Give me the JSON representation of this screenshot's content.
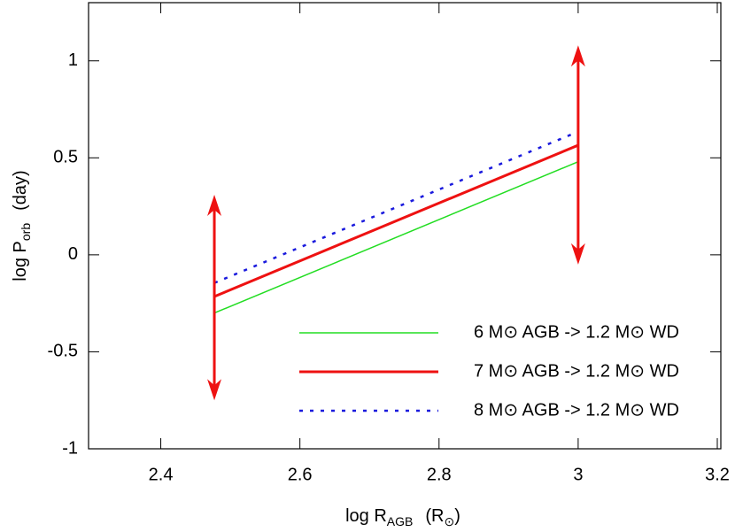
{
  "chart_data": {
    "type": "line",
    "x_label": {
      "main": "log R",
      "sub": "AGB",
      "unit": "(R",
      "sun": "⊙",
      "close": ")"
    },
    "y_label": {
      "main": "log P",
      "sub": "orb",
      "unit": "(day)"
    },
    "xlim": [
      2.3,
      3.2
    ],
    "ylim": [
      -1,
      1.3
    ],
    "xticks": [
      2.4,
      2.6,
      2.8,
      3,
      3.2
    ],
    "yticks": [
      -1,
      -0.5,
      0,
      0.5,
      1
    ],
    "series": [
      {
        "name": "6 M⊙ AGB -> 1.2 M⊙ WD",
        "color": "#22dd22",
        "style": "solid",
        "width": 1.5,
        "x": [
          2.477,
          3.0
        ],
        "values": [
          -0.3,
          0.48
        ]
      },
      {
        "name": "7 M⊙ AGB -> 1.2 M⊙ WD",
        "color": "#ee1111",
        "style": "solid",
        "width": 3,
        "x": [
          2.477,
          3.0
        ],
        "values": [
          -0.215,
          0.565
        ]
      },
      {
        "name": "8 M⊙ AGB -> 1.2 M⊙ WD",
        "color": "#1a1add",
        "style": "dotted",
        "width": 2.5,
        "x": [
          2.477,
          2.99
        ],
        "values": [
          -0.145,
          0.62
        ]
      }
    ],
    "arrows": [
      {
        "x": 2.477,
        "y": [
          -0.75,
          0.31
        ],
        "color": "#ee1111"
      },
      {
        "x": 3.0,
        "y": [
          -0.05,
          1.08
        ],
        "color": "#ee1111"
      }
    ]
  }
}
